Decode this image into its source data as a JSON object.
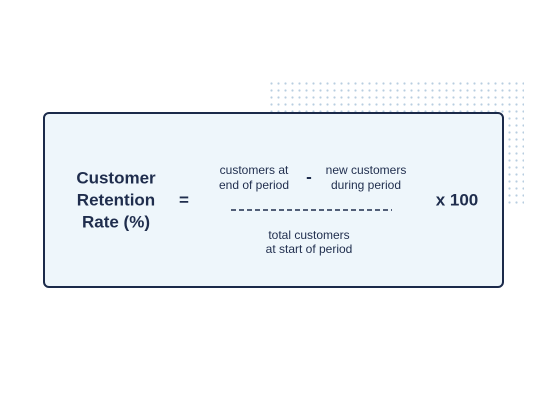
{
  "formula": {
    "label": [
      "Customer",
      "Retention",
      "Rate (%)"
    ],
    "equals": "=",
    "numerator": {
      "minuend": [
        "customers at",
        "end of period"
      ],
      "operator": "-",
      "subtrahend": [
        "new customers",
        "during period"
      ]
    },
    "denominator": [
      "total customers",
      "at start of period"
    ],
    "multiplier": "x 100"
  }
}
